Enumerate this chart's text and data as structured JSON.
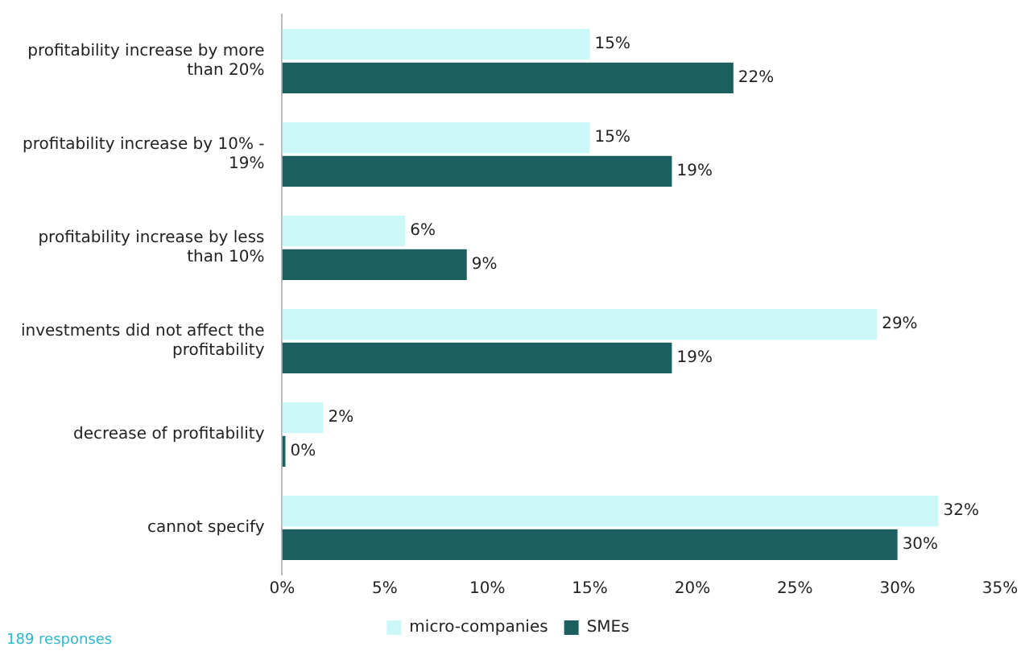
{
  "chart_data": {
    "type": "bar",
    "orientation": "horizontal",
    "categories": [
      "profitability increase by more than 20%",
      "profitability increase by 10% - 19%",
      "profitability increase by less than 10%",
      "investments did not affect the profitability",
      "decrease of profitability",
      "cannot specify"
    ],
    "series": [
      {
        "name": "micro-companies",
        "color": "#ccf7f7",
        "values": [
          15,
          15,
          6,
          29,
          2,
          32
        ],
        "value_labels": [
          "15%",
          "15%",
          "6%",
          "29%",
          "2%",
          "32%"
        ]
      },
      {
        "name": "SMEs",
        "color": "#1b5f5f",
        "values": [
          22,
          19,
          9,
          19,
          0,
          30
        ],
        "value_labels": [
          "22%",
          "19%",
          "9%",
          "19%",
          "0%",
          "30%"
        ]
      }
    ],
    "xlim": [
      0,
      35
    ],
    "xticks": [
      {
        "value": 0,
        "label": "0%"
      },
      {
        "value": 5,
        "label": "5%"
      },
      {
        "value": 10,
        "label": "10%"
      },
      {
        "value": 15,
        "label": "15%"
      },
      {
        "value": 20,
        "label": "20%"
      },
      {
        "value": 25,
        "label": "25%"
      },
      {
        "value": 30,
        "label": "30%"
      },
      {
        "value": 35,
        "label": "35%"
      }
    ],
    "grid": false,
    "legend": "bottom",
    "annotations": [
      "189 responses"
    ]
  }
}
